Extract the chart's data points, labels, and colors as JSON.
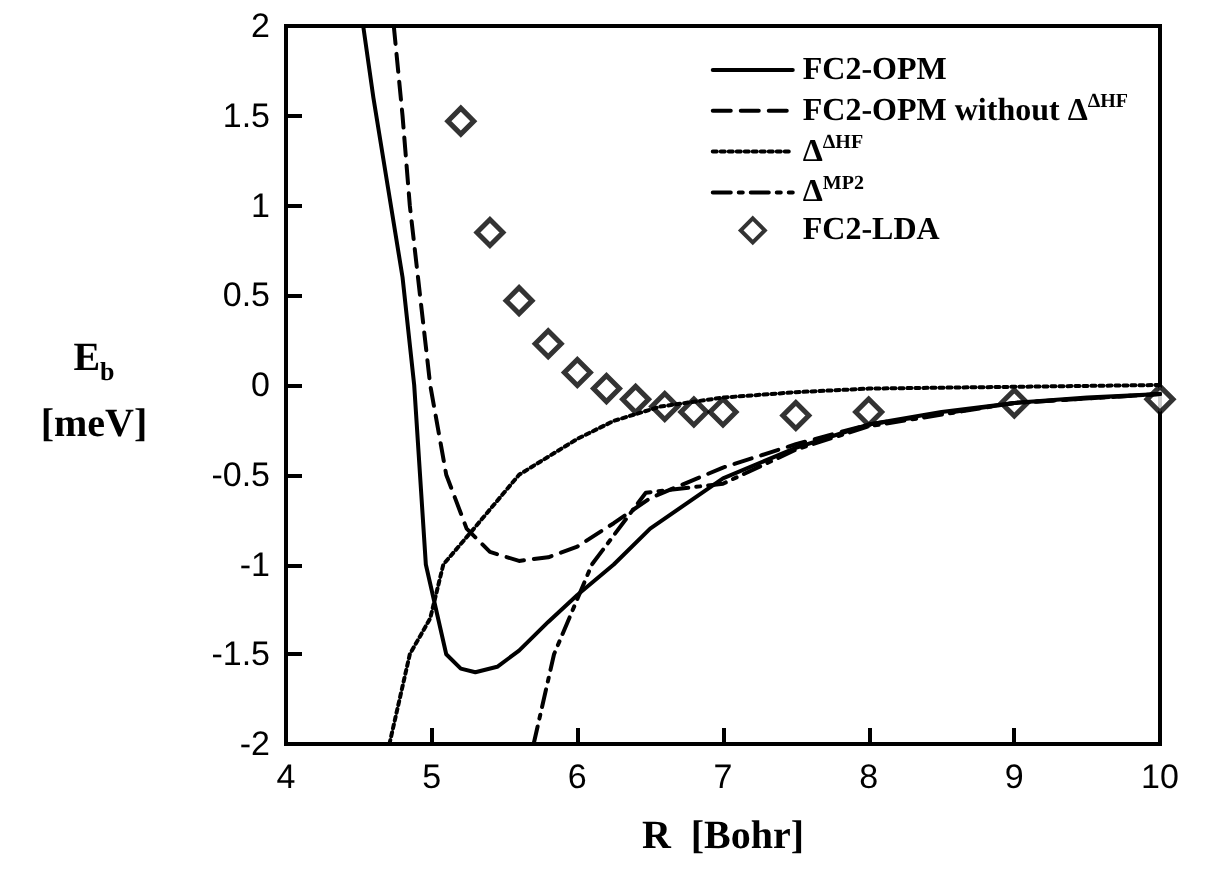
{
  "chart_data": {
    "type": "line",
    "xlabel": "R  [Bohr]",
    "ylabel": "E$_{b}$\n[meV]",
    "xlim": [
      4,
      10
    ],
    "xticks": [
      4,
      5,
      6,
      7,
      8,
      9,
      10
    ],
    "ylim": [
      -2,
      2
    ],
    "yticks": [
      -2,
      -1.5,
      -1,
      -0.5,
      0,
      0.5,
      1,
      1.5,
      2
    ],
    "grid": false,
    "legend": "top right",
    "series": [
      {
        "name": "FC2-OPM",
        "color": "#000000",
        "line_style": "solid",
        "x": [
          4.53,
          4.6,
          4.7,
          4.8,
          4.88,
          4.96,
          5.1,
          5.2,
          5.3,
          5.45,
          5.6,
          5.8,
          6,
          6.25,
          6.5,
          7,
          7.5,
          8,
          8.5,
          9,
          9.5,
          10
        ],
        "values": [
          2,
          1.6,
          1.1,
          0.6,
          0,
          -1,
          -1.5,
          -1.58,
          -1.6,
          -1.57,
          -1.48,
          -1.32,
          -1.17,
          -1,
          -0.8,
          -0.52,
          -0.35,
          -0.22,
          -0.15,
          -0.1,
          -0.07,
          -0.05
        ]
      },
      {
        "name": "FC2-OPM without Δ$^{ΔHF}$",
        "color": "#000000",
        "line_style": "dashed",
        "x": [
          4.74,
          4.8,
          4.85,
          4.92,
          4.99,
          5.1,
          5.24,
          5.4,
          5.6,
          5.8,
          6,
          6.25,
          6.5,
          7,
          7.5,
          8,
          9,
          10
        ],
        "values": [
          2,
          1.5,
          1,
          0.5,
          0,
          -0.5,
          -0.8,
          -0.93,
          -0.98,
          -0.96,
          -0.9,
          -0.77,
          -0.63,
          -0.46,
          -0.33,
          -0.22,
          -0.1,
          -0.05
        ]
      },
      {
        "name": "Δ$^{ΔHF}$",
        "color": "#000000",
        "line_style": "dotted",
        "x": [
          4.71,
          4.85,
          4.99,
          5.08,
          5.29,
          5.6,
          6,
          6.25,
          6.57,
          7,
          7.5,
          8,
          9,
          10
        ],
        "values": [
          -2,
          -1.5,
          -1.3,
          -1,
          -0.8,
          -0.5,
          -0.3,
          -0.2,
          -0.12,
          -0.07,
          -0.04,
          -0.02,
          -0.01,
          0
        ]
      },
      {
        "name": "Δ$^{MP2}$",
        "color": "#000000",
        "line_style": "dashdot",
        "x": [
          5.7,
          5.84,
          6.1,
          6.47,
          7,
          7.5,
          8,
          9,
          10
        ],
        "values": [
          -2,
          -1.5,
          -1,
          -0.6,
          -0.55,
          -0.36,
          -0.23,
          -0.1,
          -0.05
        ]
      },
      {
        "name": "FC2-LDA",
        "type": "scatter",
        "marker": "diamond",
        "color": "#000000",
        "x": [
          5.2,
          5.4,
          5.6,
          5.8,
          6,
          6.2,
          6.4,
          6.6,
          6.8,
          7,
          7.5,
          8,
          9,
          10
        ],
        "values": [
          1.47,
          0.85,
          0.47,
          0.23,
          0.07,
          -0.02,
          -0.08,
          -0.12,
          -0.15,
          -0.15,
          -0.17,
          -0.15,
          -0.1,
          -0.08
        ]
      }
    ]
  }
}
